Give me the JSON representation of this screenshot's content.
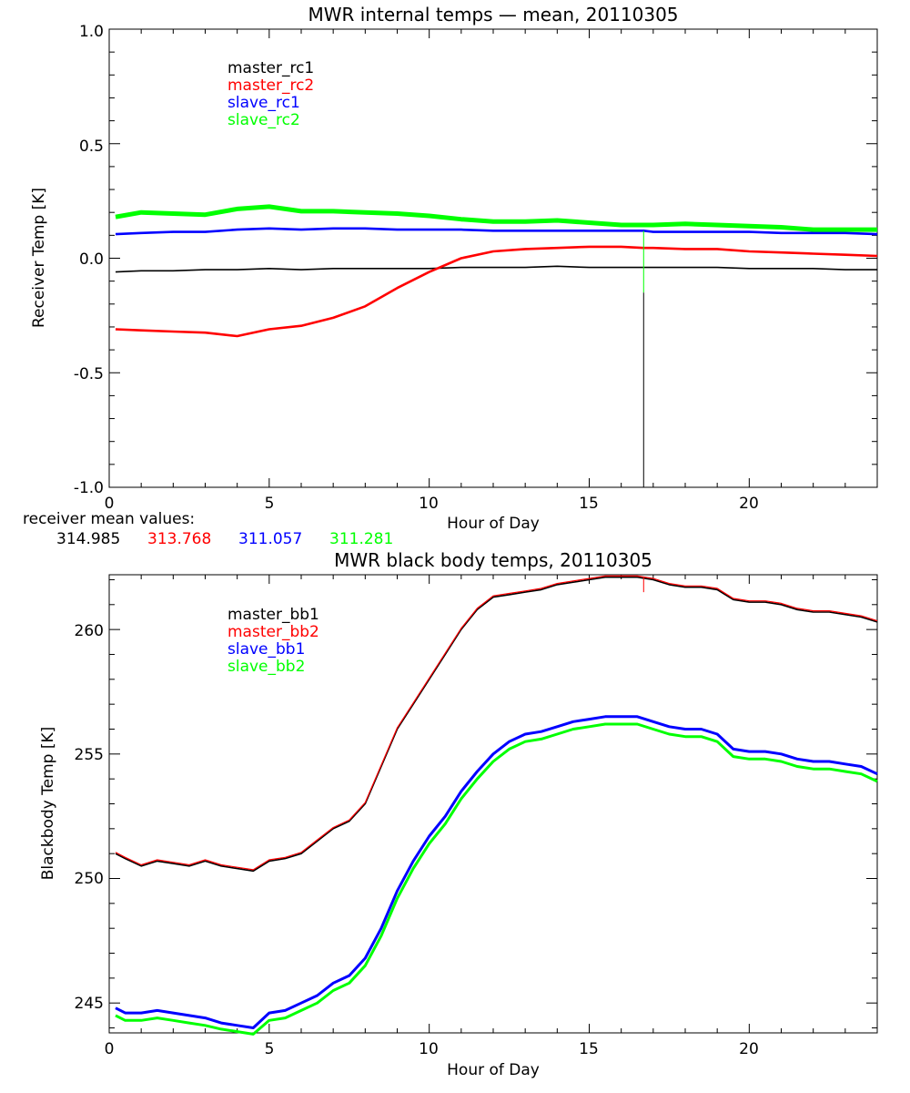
{
  "chart_data": [
    {
      "type": "line",
      "title": "MWR internal temps — mean, 20110305",
      "xlabel": "Hour of Day",
      "ylabel": "Receiver Temp [K]",
      "xlim": [
        0,
        24
      ],
      "ylim": [
        -1.0,
        1.0
      ],
      "x_ticks": [
        "0",
        "5",
        "10",
        "15",
        "20"
      ],
      "y_ticks": [
        "1.0",
        "0.5",
        "0.0",
        "-0.5",
        "-1.0"
      ],
      "legend_position": "top-left",
      "series": [
        {
          "name": "master_rc1",
          "color": "#000000",
          "x": [
            0.2,
            1,
            2,
            3,
            4,
            5,
            6,
            7,
            8,
            9,
            10,
            11,
            12,
            13,
            14,
            15,
            16,
            16.7,
            17,
            18,
            19,
            20,
            21,
            22,
            23,
            24
          ],
          "y": [
            -0.06,
            -0.055,
            -0.055,
            -0.05,
            -0.05,
            -0.045,
            -0.05,
            -0.045,
            -0.045,
            -0.045,
            -0.045,
            -0.04,
            -0.04,
            -0.04,
            -0.035,
            -0.04,
            -0.04,
            -0.04,
            -0.04,
            -0.04,
            -0.04,
            -0.045,
            -0.045,
            -0.045,
            -0.05,
            -0.05
          ]
        },
        {
          "name": "master_rc2",
          "color": "#ff0000",
          "x": [
            0.2,
            1,
            2,
            3,
            4,
            5,
            6,
            7,
            8,
            9,
            10,
            11,
            12,
            13,
            14,
            15,
            16,
            16.7,
            17,
            18,
            19,
            20,
            21,
            22,
            23,
            24
          ],
          "y": [
            -0.31,
            -0.315,
            -0.32,
            -0.325,
            -0.34,
            -0.31,
            -0.295,
            -0.26,
            -0.21,
            -0.13,
            -0.06,
            0.0,
            0.03,
            0.04,
            0.045,
            0.05,
            0.05,
            0.045,
            0.045,
            0.04,
            0.04,
            0.03,
            0.025,
            0.02,
            0.015,
            0.01
          ]
        },
        {
          "name": "slave_rc1",
          "color": "#0000ff",
          "x": [
            0.2,
            1,
            2,
            3,
            4,
            5,
            6,
            7,
            8,
            9,
            10,
            11,
            12,
            13,
            14,
            15,
            16,
            16.7,
            17,
            18,
            19,
            20,
            21,
            22,
            23,
            24
          ],
          "y": [
            0.105,
            0.11,
            0.115,
            0.115,
            0.125,
            0.13,
            0.125,
            0.13,
            0.13,
            0.125,
            0.125,
            0.125,
            0.12,
            0.12,
            0.12,
            0.12,
            0.12,
            0.12,
            0.115,
            0.115,
            0.115,
            0.115,
            0.11,
            0.11,
            0.11,
            0.105
          ]
        },
        {
          "name": "slave_rc2",
          "color": "#00ff00",
          "x": [
            0.2,
            1,
            2,
            3,
            4,
            5,
            6,
            7,
            8,
            9,
            10,
            11,
            12,
            13,
            14,
            15,
            16,
            16.7,
            17,
            18,
            19,
            20,
            21,
            22,
            23,
            24
          ],
          "y": [
            0.18,
            0.2,
            0.195,
            0.19,
            0.215,
            0.225,
            0.205,
            0.205,
            0.2,
            0.195,
            0.185,
            0.17,
            0.16,
            0.16,
            0.165,
            0.155,
            0.145,
            0.145,
            0.145,
            0.15,
            0.145,
            0.14,
            0.135,
            0.125,
            0.125,
            0.125
          ]
        }
      ],
      "spike": {
        "x": 16.7,
        "y_low": -1.0,
        "y_high": 0.12
      },
      "mean_values_label": "receiver mean values:",
      "mean_values": [
        {
          "value": "314.985",
          "color": "#000000"
        },
        {
          "value": "313.768",
          "color": "#ff0000"
        },
        {
          "value": "311.057",
          "color": "#0000ff"
        },
        {
          "value": "311.281",
          "color": "#00ff00"
        }
      ]
    },
    {
      "type": "line",
      "title": "MWR black body temps, 20110305",
      "xlabel": "Hour of Day",
      "ylabel": "Blackbody Temp [K]",
      "xlim": [
        0,
        24
      ],
      "ylim": [
        243.8,
        262.2
      ],
      "x_ticks": [
        "0",
        "5",
        "10",
        "15",
        "20"
      ],
      "y_ticks": [
        "260",
        "255",
        "250",
        "245"
      ],
      "legend_position": "top-left",
      "series": [
        {
          "name": "master_bb1",
          "color": "#000000",
          "x": [
            0.2,
            0.5,
            1,
            1.5,
            2,
            2.5,
            3,
            3.5,
            4,
            4.5,
            5,
            5.5,
            6,
            6.5,
            7,
            7.5,
            8,
            8.5,
            9,
            9.5,
            10,
            10.5,
            11,
            11.5,
            12,
            12.5,
            13,
            13.5,
            14,
            14.5,
            15,
            15.5,
            16,
            16.5,
            17,
            17.5,
            18,
            18.5,
            19,
            19.5,
            20,
            20.5,
            21,
            21.5,
            22,
            22.5,
            23,
            23.5,
            24
          ],
          "y": [
            251.0,
            250.8,
            250.5,
            250.7,
            250.6,
            250.5,
            250.7,
            250.5,
            250.4,
            250.3,
            250.7,
            250.8,
            251.0,
            251.5,
            252.0,
            252.3,
            253.0,
            254.5,
            256.0,
            257.0,
            258.0,
            259.0,
            260.0,
            260.8,
            261.3,
            261.4,
            261.5,
            261.6,
            261.8,
            261.9,
            262.0,
            262.1,
            262.1,
            262.1,
            262.0,
            261.8,
            261.7,
            261.7,
            261.6,
            261.2,
            261.1,
            261.1,
            261.0,
            260.8,
            260.7,
            260.7,
            260.6,
            260.5,
            260.3
          ]
        },
        {
          "name": "master_bb2",
          "color": "#ff0000",
          "x": [
            0.2,
            0.5,
            1,
            1.5,
            2,
            2.5,
            3,
            3.5,
            4,
            4.5,
            5,
            5.5,
            6,
            6.5,
            7,
            7.5,
            8,
            8.5,
            9,
            9.5,
            10,
            10.5,
            11,
            11.5,
            12,
            12.5,
            13,
            13.5,
            14,
            14.5,
            15,
            15.5,
            16,
            16.5,
            17,
            17.5,
            18,
            18.5,
            19,
            19.5,
            20,
            20.5,
            21,
            21.5,
            22,
            22.5,
            23,
            23.5,
            24
          ],
          "y": [
            251.05,
            250.85,
            250.55,
            250.75,
            250.65,
            250.55,
            250.75,
            250.55,
            250.45,
            250.35,
            250.75,
            250.85,
            251.05,
            251.55,
            252.05,
            252.35,
            253.05,
            254.55,
            256.05,
            257.05,
            258.05,
            259.05,
            260.05,
            260.85,
            261.35,
            261.45,
            261.55,
            261.65,
            261.85,
            261.95,
            262.05,
            262.15,
            262.15,
            262.15,
            262.05,
            261.85,
            261.75,
            261.75,
            261.65,
            261.25,
            261.15,
            261.15,
            261.05,
            260.85,
            260.75,
            260.75,
            260.65,
            260.55,
            260.35
          ]
        },
        {
          "name": "slave_bb1",
          "color": "#0000ff",
          "x": [
            0.2,
            0.5,
            1,
            1.5,
            2,
            2.5,
            3,
            3.5,
            4,
            4.5,
            5,
            5.5,
            6,
            6.5,
            7,
            7.5,
            8,
            8.5,
            9,
            9.5,
            10,
            10.5,
            11,
            11.5,
            12,
            12.5,
            13,
            13.5,
            14,
            14.5,
            15,
            15.5,
            16,
            16.5,
            17,
            17.5,
            18,
            18.5,
            19,
            19.5,
            20,
            20.5,
            21,
            21.5,
            22,
            22.5,
            23,
            23.5,
            24
          ],
          "y": [
            244.8,
            244.6,
            244.6,
            244.7,
            244.6,
            244.5,
            244.4,
            244.2,
            244.1,
            244.0,
            244.6,
            244.7,
            245.0,
            245.3,
            245.8,
            246.1,
            246.8,
            248.0,
            249.5,
            250.7,
            251.7,
            252.5,
            253.5,
            254.3,
            255.0,
            255.5,
            255.8,
            255.9,
            256.1,
            256.3,
            256.4,
            256.5,
            256.5,
            256.5,
            256.3,
            256.1,
            256.0,
            256.0,
            255.8,
            255.2,
            255.1,
            255.1,
            255.0,
            254.8,
            254.7,
            254.7,
            254.6,
            254.5,
            254.2
          ]
        },
        {
          "name": "slave_bb2",
          "color": "#00ff00",
          "x": [
            0.2,
            0.5,
            1,
            1.5,
            2,
            2.5,
            3,
            3.5,
            4,
            4.5,
            5,
            5.5,
            6,
            6.5,
            7,
            7.5,
            8,
            8.5,
            9,
            9.5,
            10,
            10.5,
            11,
            11.5,
            12,
            12.5,
            13,
            13.5,
            14,
            14.5,
            15,
            15.5,
            16,
            16.5,
            17,
            17.5,
            18,
            18.5,
            19,
            19.5,
            20,
            20.5,
            21,
            21.5,
            22,
            22.5,
            23,
            23.5,
            24
          ],
          "y": [
            244.5,
            244.3,
            244.3,
            244.4,
            244.3,
            244.2,
            244.1,
            243.95,
            243.85,
            243.75,
            244.3,
            244.4,
            244.7,
            245.0,
            245.5,
            245.8,
            246.5,
            247.7,
            249.2,
            250.4,
            251.4,
            252.2,
            253.2,
            254.0,
            254.7,
            255.2,
            255.5,
            255.6,
            255.8,
            256.0,
            256.1,
            256.2,
            256.2,
            256.2,
            256.0,
            255.8,
            255.7,
            255.7,
            255.5,
            254.9,
            254.8,
            254.8,
            254.7,
            254.5,
            254.4,
            254.4,
            254.3,
            254.2,
            253.9
          ]
        }
      ],
      "spike": {
        "x": 16.7,
        "y_low": 261.5,
        "y_high": 262.1
      }
    }
  ]
}
